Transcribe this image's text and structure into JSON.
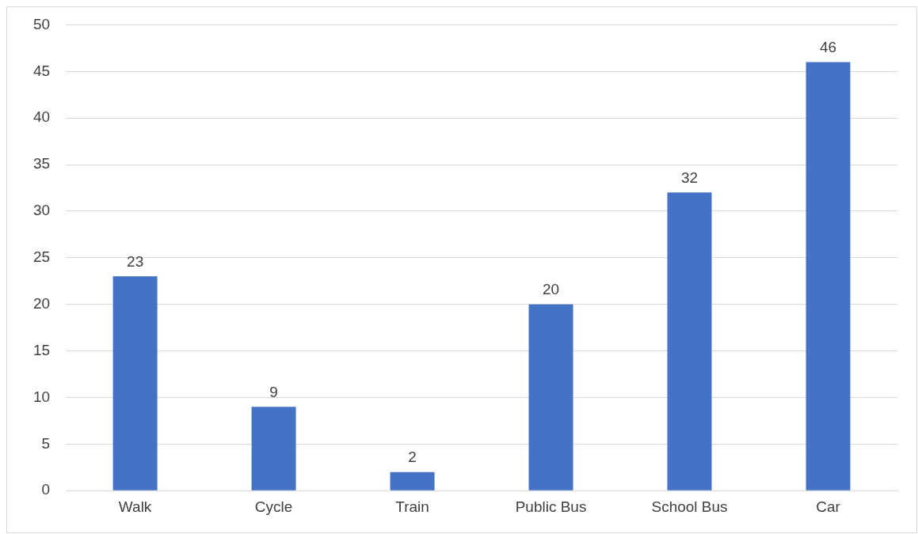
{
  "chart_data": {
    "type": "bar",
    "categories": [
      "Walk",
      "Cycle",
      "Train",
      "Public Bus",
      "School Bus",
      "Car"
    ],
    "values": [
      23,
      9,
      2,
      20,
      32,
      46
    ],
    "color": "#4472c4",
    "ylim": [
      0,
      50
    ],
    "yticks": [
      0,
      5,
      10,
      15,
      20,
      25,
      30,
      35,
      40,
      45,
      50
    ],
    "grid": "y",
    "legend": false,
    "data_labels": true
  }
}
